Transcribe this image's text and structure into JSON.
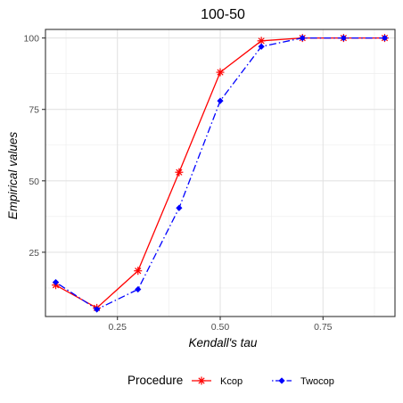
{
  "chart_data": {
    "type": "line",
    "title": "100-50",
    "xlabel": "Kendall's tau",
    "ylabel": "Empirical values",
    "xlim": [
      0.075,
      0.925
    ],
    "ylim": [
      2.5,
      103
    ],
    "x_ticks": [
      0.25,
      0.5,
      0.75
    ],
    "x_tick_labels": [
      "0.25",
      "0.50",
      "0.75"
    ],
    "y_ticks": [
      25,
      50,
      75,
      100
    ],
    "y_tick_labels": [
      "25",
      "50",
      "75",
      "100"
    ],
    "grid": true,
    "legend_position": "bottom",
    "legend_title": "Procedure",
    "x": [
      0.1,
      0.2,
      0.3,
      0.4,
      0.5,
      0.6,
      0.7,
      0.8,
      0.9
    ],
    "series": [
      {
        "name": "Kcop",
        "color": "#ff0000",
        "line_style": "solid",
        "marker": "asterisk",
        "values": [
          13.5,
          5.5,
          18.5,
          53,
          88,
          99,
          100,
          100,
          100
        ]
      },
      {
        "name": "Twocop",
        "color": "#0000ff",
        "line_style": "dashdot",
        "marker": "diamond",
        "values": [
          14.5,
          5,
          12,
          40.5,
          78,
          97,
          100,
          100,
          100
        ]
      }
    ]
  }
}
